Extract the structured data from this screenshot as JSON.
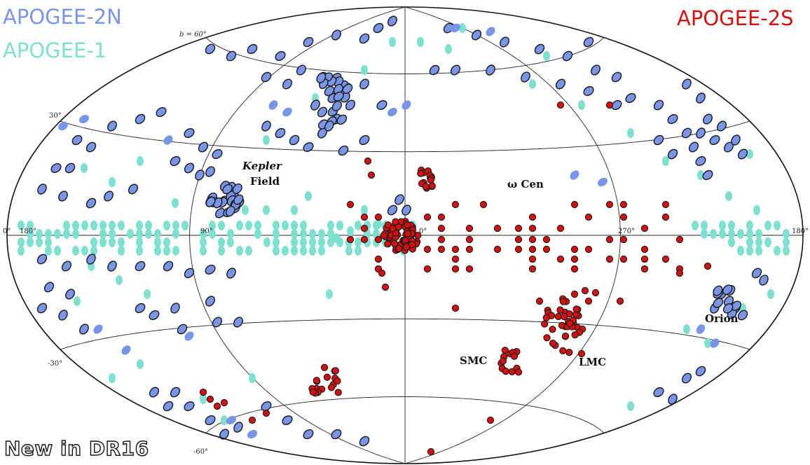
{
  "legend": {
    "apogee_2n": "APOGEE-2N",
    "apogee_1": "APOGEE-1",
    "apogee_2s": "APOGEE-2S"
  },
  "colors": {
    "apogee_2n": "#7b95e6",
    "apogee_1": "#7fe0cf",
    "apogee_2s": "#d01212",
    "outline": "#1a1a1a"
  },
  "axis_labels": {
    "b60": "b = 60°",
    "b30": "30°",
    "b0_left": "0°",
    "l180_left": "180°",
    "l90": "90°",
    "l0": "0°",
    "l270": "270°",
    "l180_right": "180°",
    "bm30": "-30°",
    "bm60": "-60°"
  },
  "annotations": {
    "kepler": "Kepler",
    "field": "Field",
    "omega_cen": "ω Cen",
    "orion": "Orion",
    "smc": "SMC",
    "lmc": "LMC"
  },
  "footer": "New in DR16",
  "projection": "Hammer-Aitoff, Galactic coordinates"
}
